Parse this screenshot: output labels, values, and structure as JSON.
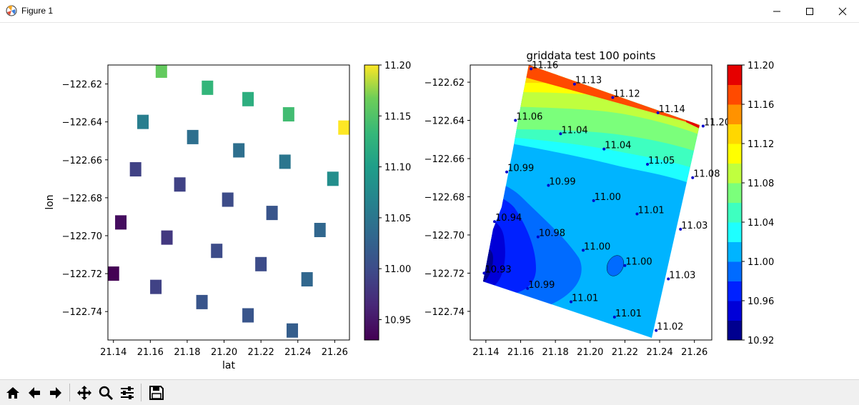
{
  "window": {
    "title": "Figure 1",
    "icons": {
      "app": "matplotlib-icon",
      "minimize": "minimize-icon",
      "maximize": "maximize-icon",
      "close": "close-icon"
    }
  },
  "toolbar": {
    "buttons": [
      {
        "name": "home-button",
        "icon": "home-icon"
      },
      {
        "name": "back-button",
        "icon": "arrow-left-icon"
      },
      {
        "name": "forward-button",
        "icon": "arrow-right-icon"
      },
      {
        "name": "pan-button",
        "icon": "move-icon"
      },
      {
        "name": "zoom-button",
        "icon": "magnifier-icon"
      },
      {
        "name": "configure-subplots-button",
        "icon": "sliders-icon"
      },
      {
        "name": "save-button",
        "icon": "floppy-disk-icon"
      }
    ]
  },
  "chart_data": [
    {
      "type": "heatmap",
      "title": "",
      "xlabel": "lat",
      "ylabel": "lon",
      "xlim": [
        21.137,
        21.268
      ],
      "ylim": [
        -122.755,
        -122.61
      ],
      "xticks": [
        "21.14",
        "21.16",
        "21.18",
        "21.20",
        "21.22",
        "21.24",
        "21.26"
      ],
      "yticks": [
        "−122.62",
        "−122.64",
        "−122.66",
        "−122.68",
        "−122.70",
        "−122.72",
        "−122.74"
      ],
      "colormap": "viridis",
      "colorbar": {
        "min": 10.93,
        "max": 11.2,
        "ticks": [
          "11.20",
          "11.15",
          "11.10",
          "11.05",
          "11.00",
          "10.95"
        ]
      },
      "cells": [
        {
          "x": 21.166,
          "y": -122.613,
          "value": 11.16
        },
        {
          "x": 21.191,
          "y": -122.622,
          "value": 11.13
        },
        {
          "x": 21.213,
          "y": -122.628,
          "value": 11.12
        },
        {
          "x": 21.235,
          "y": -122.636,
          "value": 11.14
        },
        {
          "x": 21.265,
          "y": -122.643,
          "value": 11.2
        },
        {
          "x": 21.156,
          "y": -122.64,
          "value": 11.06
        },
        {
          "x": 21.183,
          "y": -122.648,
          "value": 11.04
        },
        {
          "x": 21.208,
          "y": -122.655,
          "value": 11.04
        },
        {
          "x": 21.233,
          "y": -122.661,
          "value": 11.05
        },
        {
          "x": 21.259,
          "y": -122.67,
          "value": 11.08
        },
        {
          "x": 21.152,
          "y": -122.665,
          "value": 10.99
        },
        {
          "x": 21.176,
          "y": -122.673,
          "value": 10.99
        },
        {
          "x": 21.202,
          "y": -122.681,
          "value": 11.0
        },
        {
          "x": 21.226,
          "y": -122.688,
          "value": 11.01
        },
        {
          "x": 21.252,
          "y": -122.697,
          "value": 11.03
        },
        {
          "x": 21.144,
          "y": -122.693,
          "value": 10.94
        },
        {
          "x": 21.169,
          "y": -122.701,
          "value": 10.98
        },
        {
          "x": 21.196,
          "y": -122.708,
          "value": 11.0
        },
        {
          "x": 21.22,
          "y": -122.715,
          "value": 11.0
        },
        {
          "x": 21.245,
          "y": -122.723,
          "value": 11.03
        },
        {
          "x": 21.14,
          "y": -122.72,
          "value": 10.93
        },
        {
          "x": 21.163,
          "y": -122.727,
          "value": 10.99
        },
        {
          "x": 21.188,
          "y": -122.735,
          "value": 11.01
        },
        {
          "x": 21.213,
          "y": -122.742,
          "value": 11.01
        },
        {
          "x": 21.237,
          "y": -122.75,
          "value": 11.02
        }
      ]
    },
    {
      "type": "contour",
      "title": "griddata test 100 points",
      "xlim": [
        21.131,
        21.27
      ],
      "ylim": [
        -122.755,
        -122.611
      ],
      "xticks": [
        "21.14",
        "21.16",
        "21.18",
        "21.20",
        "21.22",
        "21.24",
        "21.26"
      ],
      "yticks": [
        "−122.62",
        "−122.64",
        "−122.66",
        "−122.68",
        "−122.70",
        "−122.72",
        "−122.74"
      ],
      "colormap": "jet",
      "colorbar": {
        "min": 10.92,
        "max": 11.2,
        "ticks": [
          "11.20",
          "11.16",
          "11.12",
          "11.08",
          "11.04",
          "11.00",
          "10.96",
          "10.92"
        ],
        "levels": [
          10.92,
          10.94,
          10.96,
          10.98,
          11.0,
          11.02,
          11.04,
          11.06,
          11.08,
          11.1,
          11.12,
          11.14,
          11.16,
          11.18,
          11.2
        ],
        "colors": [
          "#00008f",
          "#0000d8",
          "#0021ff",
          "#006bff",
          "#00b4ff",
          "#1effff",
          "#3effc0",
          "#7bff7b",
          "#c0ff3e",
          "#ffff00",
          "#ffd700",
          "#ff9200",
          "#ff4a00",
          "#e60000",
          "#a30000"
        ]
      },
      "points": [
        {
          "x": 21.166,
          "y": -122.613,
          "label": "11.16"
        },
        {
          "x": 21.191,
          "y": -122.621,
          "label": "11.13"
        },
        {
          "x": 21.213,
          "y": -122.628,
          "label": "11.12"
        },
        {
          "x": 21.239,
          "y": -122.636,
          "label": "11.14"
        },
        {
          "x": 21.265,
          "y": -122.643,
          "label": "11.20"
        },
        {
          "x": 21.157,
          "y": -122.64,
          "label": "11.06"
        },
        {
          "x": 21.183,
          "y": -122.647,
          "label": "11.04"
        },
        {
          "x": 21.208,
          "y": -122.655,
          "label": "11.04"
        },
        {
          "x": 21.233,
          "y": -122.663,
          "label": "11.05"
        },
        {
          "x": 21.259,
          "y": -122.67,
          "label": "11.08"
        },
        {
          "x": 21.152,
          "y": -122.667,
          "label": "10.99"
        },
        {
          "x": 21.176,
          "y": -122.674,
          "label": "10.99"
        },
        {
          "x": 21.202,
          "y": -122.682,
          "label": "11.00"
        },
        {
          "x": 21.227,
          "y": -122.689,
          "label": "11.01"
        },
        {
          "x": 21.252,
          "y": -122.697,
          "label": "11.03"
        },
        {
          "x": 21.145,
          "y": -122.693,
          "label": "10.94"
        },
        {
          "x": 21.17,
          "y": -122.701,
          "label": "10.98"
        },
        {
          "x": 21.196,
          "y": -122.708,
          "label": "11.00"
        },
        {
          "x": 21.22,
          "y": -122.716,
          "label": "11.00"
        },
        {
          "x": 21.245,
          "y": -122.723,
          "label": "11.03"
        },
        {
          "x": 21.139,
          "y": -122.72,
          "label": "10.93"
        },
        {
          "x": 21.164,
          "y": -122.728,
          "label": "10.99"
        },
        {
          "x": 21.189,
          "y": -122.735,
          "label": "11.01"
        },
        {
          "x": 21.214,
          "y": -122.743,
          "label": "11.01"
        },
        {
          "x": 21.238,
          "y": -122.75,
          "label": "11.02"
        }
      ]
    }
  ]
}
